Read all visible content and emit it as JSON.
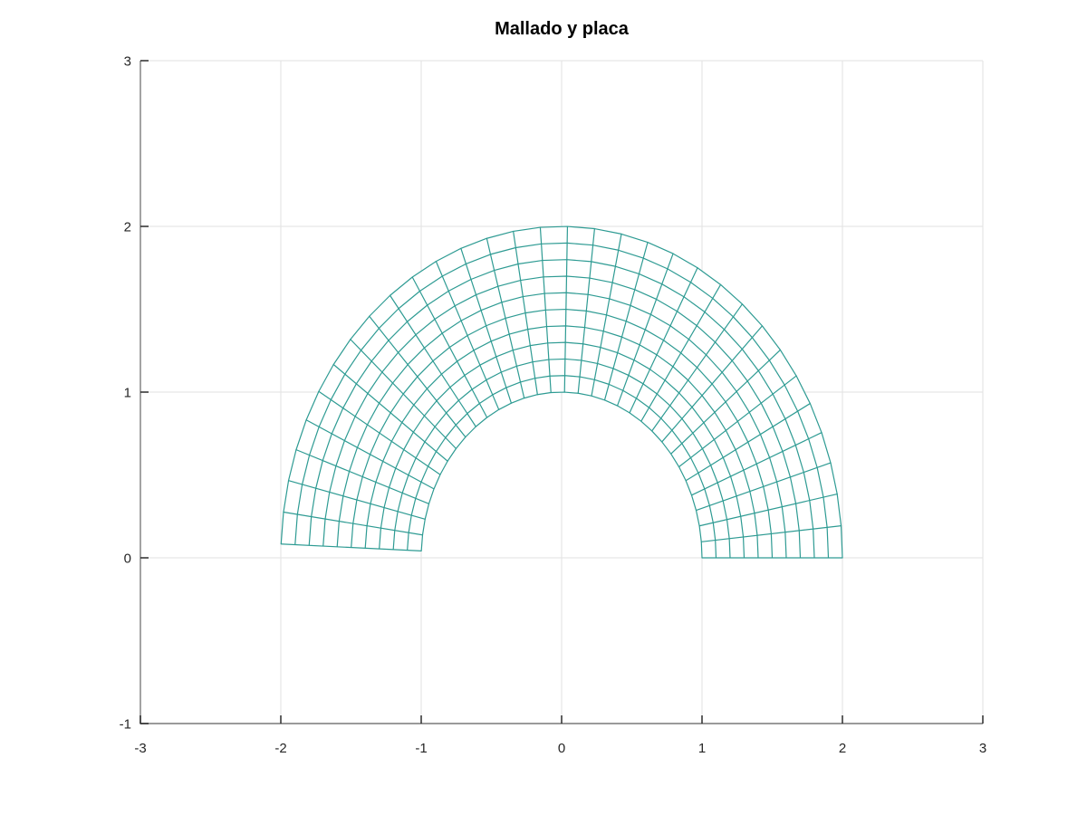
{
  "figure": {
    "title": "Mallado y placa"
  },
  "chart_data": {
    "type": "line",
    "chart_kind": "fem-polar-mesh-plot",
    "title": "Mallado y placa",
    "xlabel": "",
    "ylabel": "",
    "xlim": [
      -3,
      3
    ],
    "ylim": [
      -1,
      3
    ],
    "x_ticks": [
      -3,
      -2,
      -1,
      0,
      1,
      2,
      3
    ],
    "x_tick_labels": [
      "-3",
      "-2",
      "-1",
      "0",
      "1",
      "2",
      "3"
    ],
    "y_ticks": [
      -1,
      0,
      1,
      2,
      3
    ],
    "y_tick_labels": [
      "-1",
      "0",
      "1",
      "2",
      "3"
    ],
    "grid": true,
    "legend_position": "none",
    "mesh": {
      "shape": "annular-sector",
      "center_x": 0,
      "center_y": 0,
      "inner_radius": 1.0,
      "outer_radius": 2.0,
      "theta_start_rad": 0.0,
      "theta_end_rad": 3.1,
      "radial_divisions": 10,
      "angular_divisions": 32
    },
    "colors": {
      "mesh_line": "#2E9B93",
      "mesh_fill": "#FFFFFF",
      "grid_line": "#E2E2E2",
      "axis_line": "#8C8C8C",
      "tick_mark": "#2B2B2B",
      "tick_label": "#262626",
      "title": "#000000",
      "background": "#FFFFFF"
    }
  }
}
